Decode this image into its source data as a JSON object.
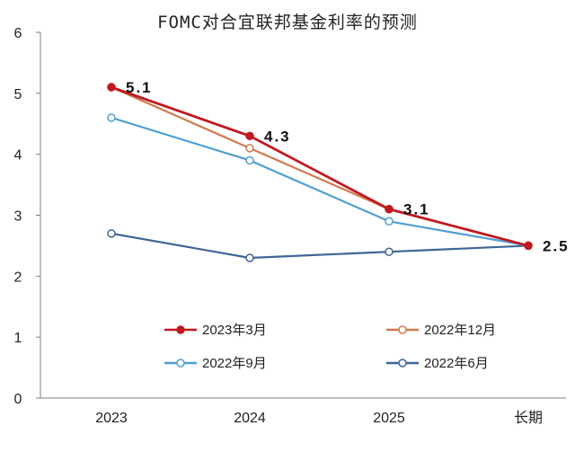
{
  "chart_data": {
    "type": "line",
    "title": "FOMC对合宜联邦基金利率的预测",
    "categories": [
      "2023",
      "2024",
      "2025",
      "长期"
    ],
    "ylim": [
      0,
      6
    ],
    "yticks": [
      0,
      1,
      2,
      3,
      4,
      5,
      6
    ],
    "grid": false,
    "legend_position": "bottom-center",
    "series": [
      {
        "name": "2023年3月",
        "values": [
          5.1,
          4.3,
          3.1,
          2.5
        ],
        "color": "#c0191f",
        "marker": "filled"
      },
      {
        "name": "2022年12月",
        "values": [
          5.1,
          4.1,
          3.1,
          2.5
        ],
        "color": "#d07a4f",
        "marker": "hollow"
      },
      {
        "name": "2022年9月",
        "values": [
          4.6,
          3.9,
          2.9,
          2.5
        ],
        "color": "#4f9fd2",
        "marker": "hollow"
      },
      {
        "name": "2022年6月",
        "values": [
          2.7,
          2.3,
          2.4,
          2.5
        ],
        "color": "#3e6596",
        "marker": "hollow"
      }
    ],
    "data_labels": [
      "5.1",
      "4.3",
      "3.1",
      "2.5"
    ]
  }
}
